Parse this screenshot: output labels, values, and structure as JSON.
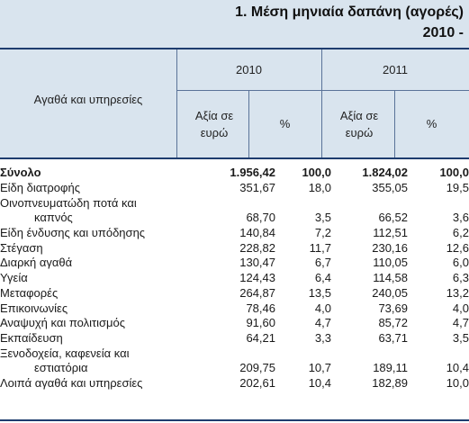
{
  "title": {
    "line1": "1. Μέση μηνιαία δαπάνη (αγορές)",
    "line2": "2010 -"
  },
  "header": {
    "row_label": "Αγαθά και υπηρεσίες",
    "year_2010": "2010",
    "year_2011": "2011",
    "value_label": "Αξία σε ευρώ",
    "percent_label": "%"
  },
  "rows": [
    {
      "label": "Σύνολο",
      "label_line2": "",
      "v2010": "1.956,42",
      "p2010": "100,0",
      "v2011": "1.824,02",
      "p2011": "100,0"
    },
    {
      "label": "Είδη διατροφής",
      "label_line2": "",
      "v2010": "351,67",
      "p2010": "18,0",
      "v2011": "355,05",
      "p2011": "19,5"
    },
    {
      "label": "Οινοπνευματώδη ποτά και",
      "label_line2": "καπνός",
      "v2010": "68,70",
      "p2010": "3,5",
      "v2011": "66,52",
      "p2011": "3,6"
    },
    {
      "label": "Είδη ένδυσης και υπόδησης",
      "label_line2": "",
      "v2010": "140,84",
      "p2010": "7,2",
      "v2011": "112,51",
      "p2011": "6,2"
    },
    {
      "label": "Στέγαση",
      "label_line2": "",
      "v2010": "228,82",
      "p2010": "11,7",
      "v2011": "230,16",
      "p2011": "12,6"
    },
    {
      "label": "Διαρκή αγαθά",
      "label_line2": "",
      "v2010": "130,47",
      "p2010": "6,7",
      "v2011": "110,05",
      "p2011": "6,0"
    },
    {
      "label": "Υγεία",
      "label_line2": "",
      "v2010": "124,43",
      "p2010": "6,4",
      "v2011": "114,58",
      "p2011": "6,3"
    },
    {
      "label": "Μεταφορές",
      "label_line2": "",
      "v2010": "264,87",
      "p2010": "13,5",
      "v2011": "240,05",
      "p2011": "13,2"
    },
    {
      "label": "Επικοινωνίες",
      "label_line2": "",
      "v2010": "78,46",
      "p2010": "4,0",
      "v2011": "73,69",
      "p2011": "4,0"
    },
    {
      "label": "Αναψυχή και πολιτισμός",
      "label_line2": "",
      "v2010": "91,60",
      "p2010": "4,7",
      "v2011": "85,72",
      "p2011": "4,7"
    },
    {
      "label": "Εκπαίδευση",
      "label_line2": "",
      "v2010": "64,21",
      "p2010": "3,3",
      "v2011": "63,71",
      "p2011": "3,5"
    },
    {
      "label": "Ξενοδοχεία, καφενεία και",
      "label_line2": "εστιατόρια",
      "v2010": "209,75",
      "p2010": "10,7",
      "v2011": "189,11",
      "p2011": "10,4"
    },
    {
      "label": "Λοιπά αγαθά και υπηρεσίες",
      "label_line2": "",
      "v2010": "202,61",
      "p2010": "10,4",
      "v2011": "182,89",
      "p2011": "10,0"
    }
  ]
}
